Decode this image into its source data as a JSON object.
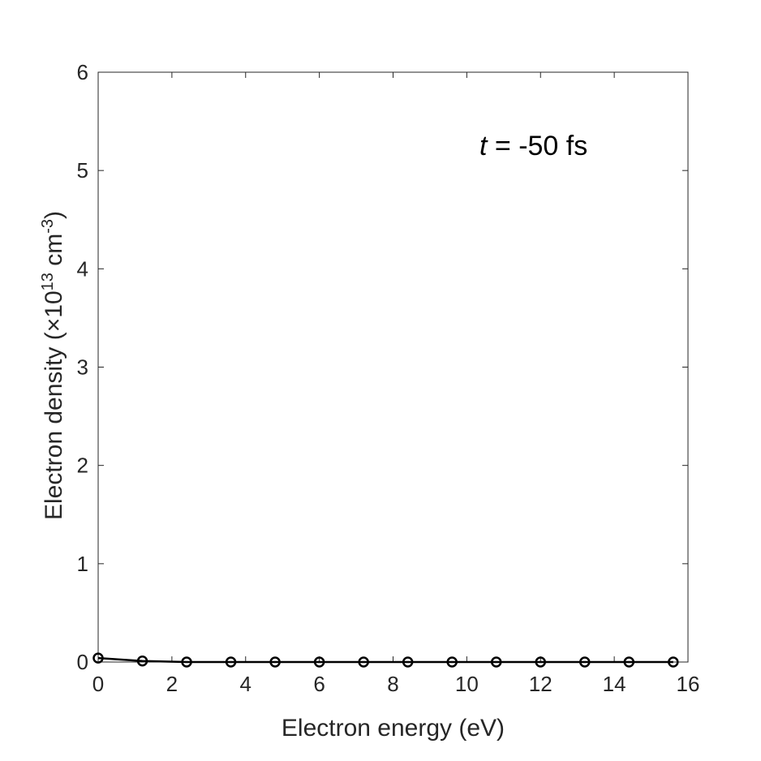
{
  "chart_data": {
    "type": "line",
    "xlabel": "Electron energy (eV)",
    "ylabel": {
      "prefix": "Electron density (",
      "times": "×",
      "base": "10",
      "exponent": "13",
      "unit": " cm",
      "unit_exponent": "-3",
      "suffix": ")"
    },
    "annotation": {
      "italic": "t",
      "rest": " = -50 fs",
      "position": "top-right"
    },
    "xlim": [
      0,
      16
    ],
    "ylim": [
      0,
      6
    ],
    "xticks": [
      0,
      2,
      4,
      6,
      8,
      10,
      12,
      14,
      16
    ],
    "yticks": [
      0,
      1,
      2,
      3,
      4,
      5,
      6
    ],
    "grid": false,
    "series": [
      {
        "marker": "open-circle",
        "color": "#000000",
        "x": [
          0,
          1.2,
          2.4,
          3.6,
          4.8,
          6.0,
          7.2,
          8.4,
          9.6,
          10.8,
          12.0,
          13.2,
          14.4,
          15.6
        ],
        "y": [
          0.04,
          0.01,
          0.0,
          0.0,
          0.0,
          0.0,
          0.0,
          0.0,
          0.0,
          0.0,
          0.0,
          0.0,
          0.0,
          0.0
        ]
      }
    ]
  }
}
